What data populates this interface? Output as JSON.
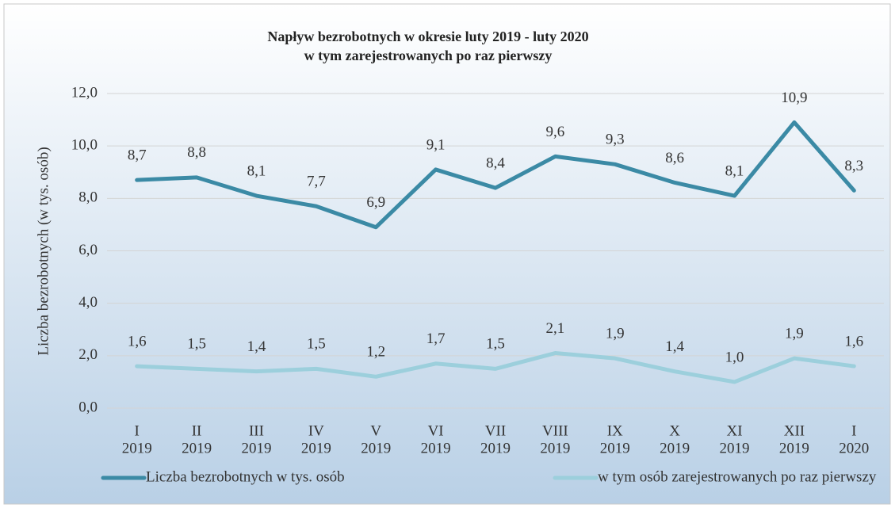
{
  "chart_data": {
    "type": "line",
    "title": "Napływ  bezrobotnych w okresie luty 2019 - luty 2020",
    "subtitle": "w tym zarejestrowanych po raz pierwszy",
    "y_label": "Liczba bezrobotnych (w tys. osób)",
    "categories": [
      [
        "I",
        "2019"
      ],
      [
        "II",
        "2019"
      ],
      [
        "III",
        "2019"
      ],
      [
        "IV",
        "2019"
      ],
      [
        "V",
        "2019"
      ],
      [
        "VI",
        "2019"
      ],
      [
        "VII",
        "2019"
      ],
      [
        "VIII",
        "2019"
      ],
      [
        "IX",
        "2019"
      ],
      [
        "X",
        "2019"
      ],
      [
        "XI",
        "2019"
      ],
      [
        "XII",
        "2019"
      ],
      [
        "I",
        "2020"
      ]
    ],
    "series": [
      {
        "name": "Liczba bezrobotnych w tys. osób",
        "color": "#3b8aa5",
        "values": [
          8.7,
          8.8,
          8.1,
          7.7,
          6.9,
          9.1,
          8.4,
          9.6,
          9.3,
          8.6,
          8.1,
          10.9,
          8.3
        ],
        "value_labels": [
          "8,7",
          "8,8",
          "8,1",
          "7,7",
          "6,9",
          "9,1",
          "8,4",
          "9,6",
          "9,3",
          "8,6",
          "8,1",
          "10,9",
          "8,3"
        ]
      },
      {
        "name": "w tym osób zarejestrowanych po raz pierwszy",
        "color": "#9ccfdc",
        "values": [
          1.6,
          1.5,
          1.4,
          1.5,
          1.2,
          1.7,
          1.5,
          2.1,
          1.9,
          1.4,
          1.0,
          1.9,
          1.6
        ],
        "value_labels": [
          "1,6",
          "1,5",
          "1,4",
          "1,5",
          "1,2",
          "1,7",
          "1,5",
          "2,1",
          "1,9",
          "1,4",
          "1,0",
          "1,9",
          "1,6"
        ]
      }
    ],
    "ylim": [
      0,
      12
    ],
    "yticks": [
      {
        "value": 0,
        "label": "0,0"
      },
      {
        "value": 2,
        "label": "2,0"
      },
      {
        "value": 4,
        "label": "4,0"
      },
      {
        "value": 6,
        "label": "6,0"
      },
      {
        "value": 8,
        "label": "8,0"
      },
      {
        "value": 10,
        "label": "10,0"
      },
      {
        "value": 12,
        "label": "12,0"
      }
    ],
    "grid": true,
    "legend": "bottom"
  }
}
